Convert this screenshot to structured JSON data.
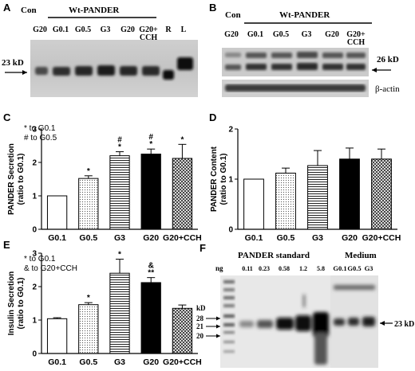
{
  "panels": {
    "A": {
      "letter": "A",
      "con": "Con",
      "group": "Wt-PANDER",
      "lanes": [
        "G20",
        "G0.1",
        "G0.5",
        "G3",
        "G20",
        "G20+\nCCH",
        "R",
        "L"
      ],
      "marker": "23 kD"
    },
    "B": {
      "letter": "B",
      "con": "Con",
      "group": "Wt-PANDER",
      "lanes": [
        "G20",
        "G0.1",
        "G0.5",
        "G3",
        "G20",
        "G20+\nCCH"
      ],
      "marker": "26 kD",
      "loading": "β-actin"
    },
    "F": {
      "letter": "F",
      "standard_title": "PANDER standard",
      "medium_title": "Medium",
      "ng": "ng",
      "standard_lanes": [
        "0.11",
        "0.23",
        "0.58",
        "1.2",
        "5.8"
      ],
      "medium_lanes": [
        "G0.1",
        "G0.5",
        "G3"
      ],
      "kd": "kD",
      "ladder": [
        "28",
        "21",
        "20"
      ],
      "marker": "23 kD"
    }
  },
  "chart_data": [
    {
      "panel": "C",
      "type": "bar",
      "ylabel": "PANDER Secretion\n(ratio to G0.1)",
      "categories": [
        "G0.1",
        "G0.5",
        "G3",
        "G20",
        "G20+CCH"
      ],
      "values": [
        1.0,
        1.52,
        2.2,
        2.25,
        2.12
      ],
      "errors": [
        0,
        0.08,
        0.12,
        0.15,
        0.42
      ],
      "annotations": [
        "",
        "*",
        "#\n*",
        "#\n*",
        "*"
      ],
      "legend": [
        "* to G0.1",
        "# to G0.5"
      ],
      "ylim": [
        0,
        3
      ],
      "yticks": [
        "0",
        "1",
        "2",
        "3"
      ]
    },
    {
      "panel": "D",
      "type": "bar",
      "ylabel": "PANDER Content\n(ratio to G0.1)",
      "categories": [
        "G0.1",
        "G0.5",
        "G3",
        "G20",
        "G20+CCH"
      ],
      "values": [
        1.0,
        1.12,
        1.27,
        1.4,
        1.4
      ],
      "errors": [
        0,
        0.1,
        0.3,
        0.22,
        0.2
      ],
      "annotations": [
        "",
        "",
        "",
        "",
        ""
      ],
      "legend": [],
      "ylim": [
        0,
        2
      ],
      "yticks": [
        "0",
        "1",
        "2"
      ]
    },
    {
      "panel": "E",
      "type": "bar",
      "ylabel": "Insulin Secretion\n(ratio to G0.1)",
      "categories": [
        "G0.1",
        "G0.5",
        "G3",
        "G20",
        "G20+CCH"
      ],
      "values": [
        1.04,
        1.46,
        2.4,
        2.12,
        1.35
      ],
      "errors": [
        0.03,
        0.06,
        0.42,
        0.15,
        0.1
      ],
      "annotations": [
        "",
        "*",
        "*",
        "&\n**",
        ""
      ],
      "legend": [
        "* to G0.1",
        "& to G20+CCH"
      ],
      "ylim": [
        0,
        3
      ],
      "yticks": [
        "0",
        "1",
        "2",
        "3"
      ]
    }
  ]
}
